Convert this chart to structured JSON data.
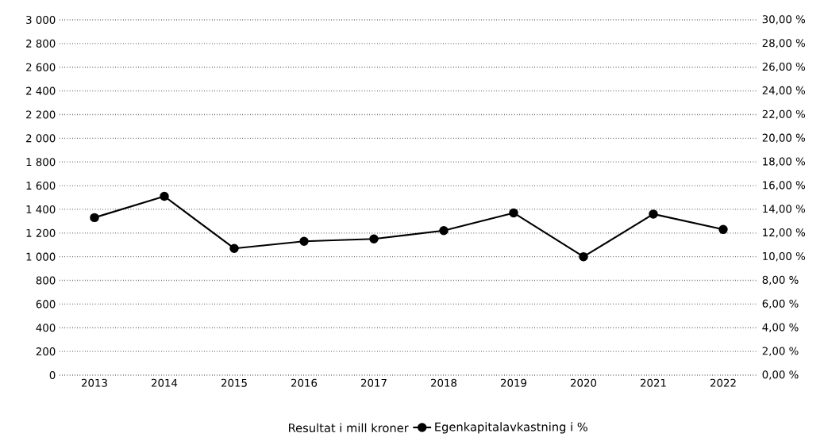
{
  "chart_data": {
    "type": "line",
    "annotations": [
      "Resultat i mill kroner"
    ],
    "categories": [
      "2013",
      "2014",
      "2015",
      "2016",
      "2017",
      "2018",
      "2019",
      "2020",
      "2021",
      "2022"
    ],
    "series": [
      {
        "name": "Egenkapitalavkastning i %",
        "axis": "y2",
        "color": "#000000",
        "marker": "circle",
        "line_style": "solid",
        "values": [
          13.3,
          15.1,
          10.7,
          11.3,
          11.5,
          12.2,
          13.7,
          10.0,
          13.6,
          12.3
        ]
      }
    ],
    "ylim": [
      0,
      3000
    ],
    "yticks": [
      {
        "value": 0,
        "label": "0"
      },
      {
        "value": 200,
        "label": "200"
      },
      {
        "value": 400,
        "label": "400"
      },
      {
        "value": 600,
        "label": "600"
      },
      {
        "value": 800,
        "label": "800"
      },
      {
        "value": 1000,
        "label": "1 000"
      },
      {
        "value": 1200,
        "label": "1 200"
      },
      {
        "value": 1400,
        "label": "1 400"
      },
      {
        "value": 1600,
        "label": "1 600"
      },
      {
        "value": 1800,
        "label": "1 800"
      },
      {
        "value": 2000,
        "label": "2 000"
      },
      {
        "value": 2200,
        "label": "2 200"
      },
      {
        "value": 2400,
        "label": "2 400"
      },
      {
        "value": 2600,
        "label": "2 600"
      },
      {
        "value": 2800,
        "label": "2 800"
      },
      {
        "value": 3000,
        "label": "3 000"
      }
    ],
    "y2lim": [
      0,
      30
    ],
    "y2ticks": [
      {
        "value": 0,
        "label": "0,00 %"
      },
      {
        "value": 2,
        "label": "2,00 %"
      },
      {
        "value": 4,
        "label": "4,00 %"
      },
      {
        "value": 6,
        "label": "6,00 %"
      },
      {
        "value": 8,
        "label": "8,00 %"
      },
      {
        "value": 10,
        "label": "10,00 %"
      },
      {
        "value": 12,
        "label": "12,00 %"
      },
      {
        "value": 14,
        "label": "14,00 %"
      },
      {
        "value": 16,
        "label": "16,00 %"
      },
      {
        "value": 18,
        "label": "18,00 %"
      },
      {
        "value": 20,
        "label": "20,00 %"
      },
      {
        "value": 22,
        "label": "22,00 %"
      },
      {
        "value": 24,
        "label": "24,00 %"
      },
      {
        "value": 26,
        "label": "26,00 %"
      },
      {
        "value": 28,
        "label": "28,00 %"
      },
      {
        "value": 30,
        "label": "30,00 %"
      }
    ],
    "grid": "y",
    "legend": "bottom"
  }
}
